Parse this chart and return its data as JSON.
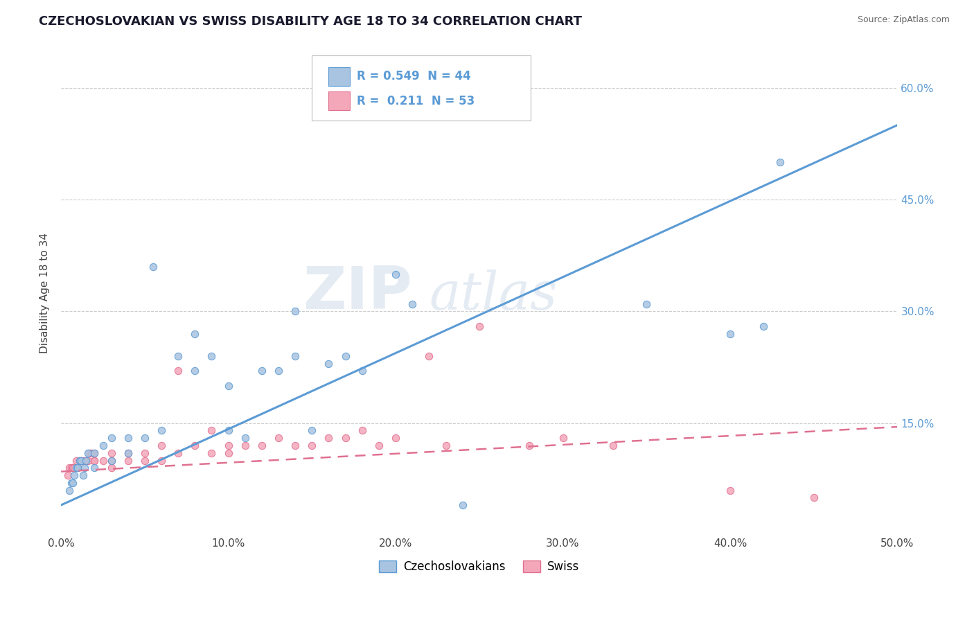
{
  "title": "CZECHOSLOVAKIAN VS SWISS DISABILITY AGE 18 TO 34 CORRELATION CHART",
  "source": "Source: ZipAtlas.com",
  "ylabel": "Disability Age 18 to 34",
  "xlim": [
    0.0,
    0.5
  ],
  "ylim": [
    0.0,
    0.65
  ],
  "xtick_labels": [
    "0.0%",
    "10.0%",
    "20.0%",
    "30.0%",
    "40.0%",
    "50.0%"
  ],
  "xtick_vals": [
    0.0,
    0.1,
    0.2,
    0.3,
    0.4,
    0.5
  ],
  "ytick_labels": [
    "15.0%",
    "30.0%",
    "45.0%",
    "60.0%"
  ],
  "ytick_vals": [
    0.15,
    0.3,
    0.45,
    0.6
  ],
  "R_czech": 0.549,
  "N_czech": 44,
  "R_swiss": 0.211,
  "N_swiss": 53,
  "czech_color": "#a8c4e0",
  "swiss_color": "#f4a7b9",
  "line_czech_color": "#5b9bd5",
  "line_swiss_color": "#e07090",
  "tick_color": "#5b9bd5",
  "background_color": "#ffffff",
  "grid_color": "#cccccc",
  "czech_line_x0": 0.0,
  "czech_line_y0": 0.04,
  "czech_line_x1": 0.5,
  "czech_line_y1": 0.55,
  "swiss_line_x0": 0.0,
  "swiss_line_y0": 0.085,
  "swiss_line_x1": 0.5,
  "swiss_line_y1": 0.145,
  "czech_x": [
    0.005,
    0.006,
    0.007,
    0.008,
    0.009,
    0.01,
    0.011,
    0.012,
    0.013,
    0.014,
    0.015,
    0.016,
    0.02,
    0.02,
    0.025,
    0.03,
    0.03,
    0.04,
    0.04,
    0.05,
    0.055,
    0.06,
    0.07,
    0.08,
    0.08,
    0.09,
    0.1,
    0.1,
    0.11,
    0.12,
    0.13,
    0.14,
    0.14,
    0.15,
    0.16,
    0.17,
    0.18,
    0.2,
    0.21,
    0.24,
    0.35,
    0.4,
    0.42,
    0.43
  ],
  "czech_y": [
    0.06,
    0.07,
    0.07,
    0.08,
    0.09,
    0.09,
    0.1,
    0.1,
    0.08,
    0.09,
    0.1,
    0.11,
    0.09,
    0.11,
    0.12,
    0.1,
    0.13,
    0.11,
    0.13,
    0.13,
    0.36,
    0.14,
    0.24,
    0.22,
    0.27,
    0.24,
    0.14,
    0.2,
    0.13,
    0.22,
    0.22,
    0.24,
    0.3,
    0.14,
    0.23,
    0.24,
    0.22,
    0.35,
    0.31,
    0.04,
    0.31,
    0.27,
    0.28,
    0.5
  ],
  "swiss_x": [
    0.004,
    0.005,
    0.006,
    0.007,
    0.008,
    0.009,
    0.01,
    0.011,
    0.012,
    0.013,
    0.014,
    0.015,
    0.016,
    0.017,
    0.018,
    0.02,
    0.02,
    0.02,
    0.025,
    0.03,
    0.03,
    0.03,
    0.04,
    0.04,
    0.05,
    0.05,
    0.06,
    0.06,
    0.07,
    0.07,
    0.08,
    0.09,
    0.09,
    0.1,
    0.1,
    0.11,
    0.12,
    0.13,
    0.14,
    0.15,
    0.16,
    0.17,
    0.18,
    0.19,
    0.2,
    0.22,
    0.23,
    0.25,
    0.28,
    0.3,
    0.33,
    0.4,
    0.45
  ],
  "swiss_y": [
    0.08,
    0.09,
    0.09,
    0.09,
    0.09,
    0.1,
    0.09,
    0.1,
    0.1,
    0.1,
    0.1,
    0.1,
    0.1,
    0.11,
    0.11,
    0.1,
    0.1,
    0.11,
    0.1,
    0.09,
    0.1,
    0.11,
    0.1,
    0.11,
    0.1,
    0.11,
    0.1,
    0.12,
    0.11,
    0.22,
    0.12,
    0.11,
    0.14,
    0.11,
    0.12,
    0.12,
    0.12,
    0.13,
    0.12,
    0.12,
    0.13,
    0.13,
    0.14,
    0.12,
    0.13,
    0.24,
    0.12,
    0.28,
    0.12,
    0.13,
    0.12,
    0.06,
    0.05
  ]
}
